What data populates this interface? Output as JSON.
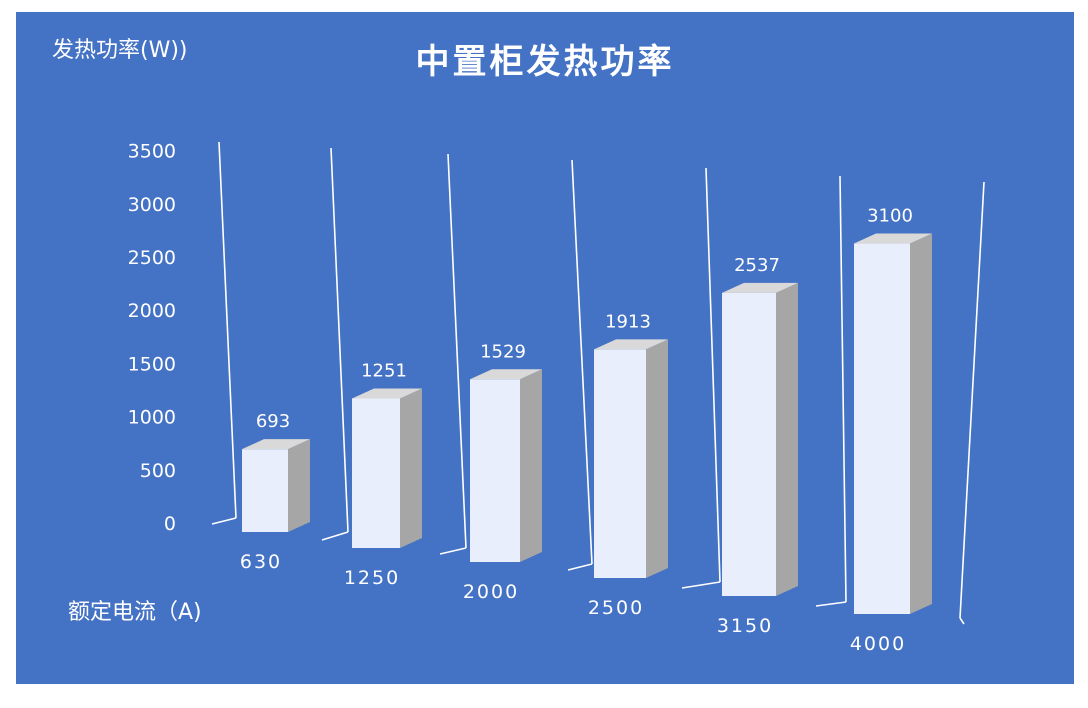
{
  "chart_data": {
    "type": "bar",
    "title": "中置柜发热功率",
    "ylabel": "发热功率(W))",
    "xlabel": "额定电流（A)",
    "categories": [
      "630",
      "1250",
      "2000",
      "2500",
      "3150",
      "4000"
    ],
    "values": [
      693,
      1251,
      1529,
      1913,
      2537,
      3100
    ],
    "y_ticks": [
      "0",
      "500",
      "1000",
      "1500",
      "2000",
      "2500",
      "3000",
      "3500"
    ],
    "ylim": [
      0,
      3500
    ],
    "grid": true,
    "legend": "none",
    "colors": {
      "background": "#4472c4",
      "bar_front": "#e8eefb",
      "bar_side": "#a6a6a6",
      "bar_top": "#d9d9d9",
      "text": "#ffffff",
      "grid": "#ffffff"
    }
  }
}
